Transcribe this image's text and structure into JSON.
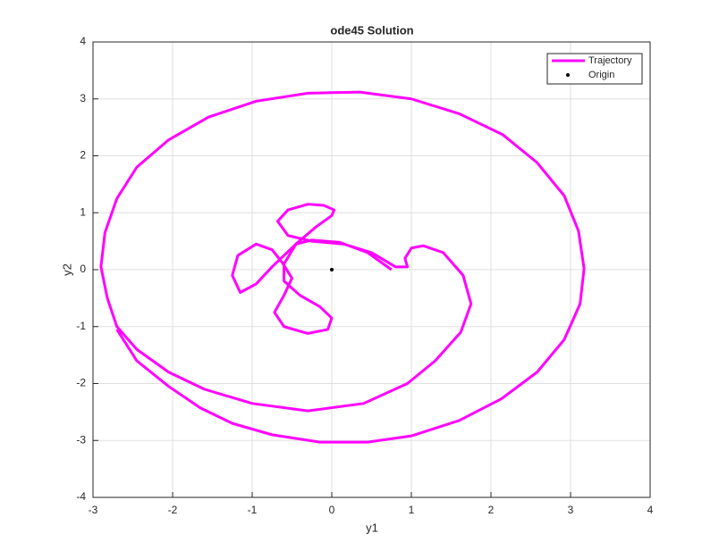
{
  "chart_data": {
    "type": "line",
    "title": "ode45 Solution",
    "xlabel": "y1",
    "ylabel": "y2",
    "xlim": [
      -3,
      4
    ],
    "ylim": [
      -4,
      4
    ],
    "xticks": [
      -3,
      -2,
      -1,
      0,
      1,
      2,
      3,
      4
    ],
    "yticks": [
      -4,
      -3,
      -2,
      -1,
      0,
      1,
      2,
      3,
      4
    ],
    "grid": true,
    "legend": "northeast",
    "series": [
      {
        "name": "Trajectory",
        "color": "#ff00ff",
        "x": [
          0.75,
          0.45,
          0.1,
          -0.25,
          -0.45,
          -0.6,
          -0.75,
          -0.95,
          -1.15,
          -1.25,
          -1.18,
          -0.95,
          -0.75,
          -0.62,
          -0.5,
          -0.6,
          -0.72,
          -0.6,
          -0.3,
          -0.05,
          0.0,
          -0.15,
          -0.4,
          -0.6,
          -0.6,
          -0.45,
          -0.2,
          0.0,
          0.03,
          -0.1,
          -0.3,
          -0.55,
          -0.68,
          -0.55,
          -0.25,
          0.15,
          0.5,
          0.8,
          0.95,
          0.92,
          1.0,
          1.15,
          1.4,
          1.65,
          1.75,
          1.62,
          1.3,
          0.95,
          0.4,
          -0.3,
          -1.0,
          -1.6,
          -2.05,
          -2.45,
          -2.7,
          -2.82,
          -2.9,
          -2.85,
          -2.7,
          -2.45,
          -2.05,
          -1.55,
          -0.95,
          -0.3,
          0.35,
          1.0,
          1.6,
          2.15,
          2.58,
          2.92,
          3.1,
          3.17,
          3.12,
          2.92,
          2.58,
          2.13,
          1.6,
          1.0,
          0.45,
          -0.15,
          -0.75,
          -1.25,
          -1.65,
          -2.05,
          -2.45,
          -2.7
        ],
        "values": [
          0.0,
          0.3,
          0.48,
          0.52,
          0.45,
          0.25,
          0.05,
          -0.25,
          -0.4,
          -0.1,
          0.25,
          0.45,
          0.35,
          0.12,
          -0.15,
          -0.45,
          -0.75,
          -1.0,
          -1.12,
          -1.05,
          -0.85,
          -0.65,
          -0.45,
          -0.2,
          0.1,
          0.45,
          0.75,
          0.95,
          1.05,
          1.13,
          1.15,
          1.05,
          0.85,
          0.6,
          0.5,
          0.45,
          0.3,
          0.05,
          0.05,
          0.2,
          0.38,
          0.42,
          0.3,
          -0.1,
          -0.6,
          -1.1,
          -1.6,
          -2.0,
          -2.35,
          -2.48,
          -2.35,
          -2.1,
          -1.8,
          -1.4,
          -1.0,
          -0.5,
          0.05,
          0.65,
          1.25,
          1.8,
          2.28,
          2.68,
          2.96,
          3.1,
          3.12,
          3.0,
          2.74,
          2.37,
          1.88,
          1.3,
          0.68,
          0.02,
          -0.6,
          -1.23,
          -1.8,
          -2.27,
          -2.65,
          -2.92,
          -3.03,
          -3.03,
          -2.9,
          -2.7,
          -2.43,
          -2.05,
          -1.6,
          -1.05
        ]
      },
      {
        "name": "Origin",
        "color": "#000000",
        "x": [
          0
        ],
        "values": [
          0
        ]
      }
    ]
  }
}
